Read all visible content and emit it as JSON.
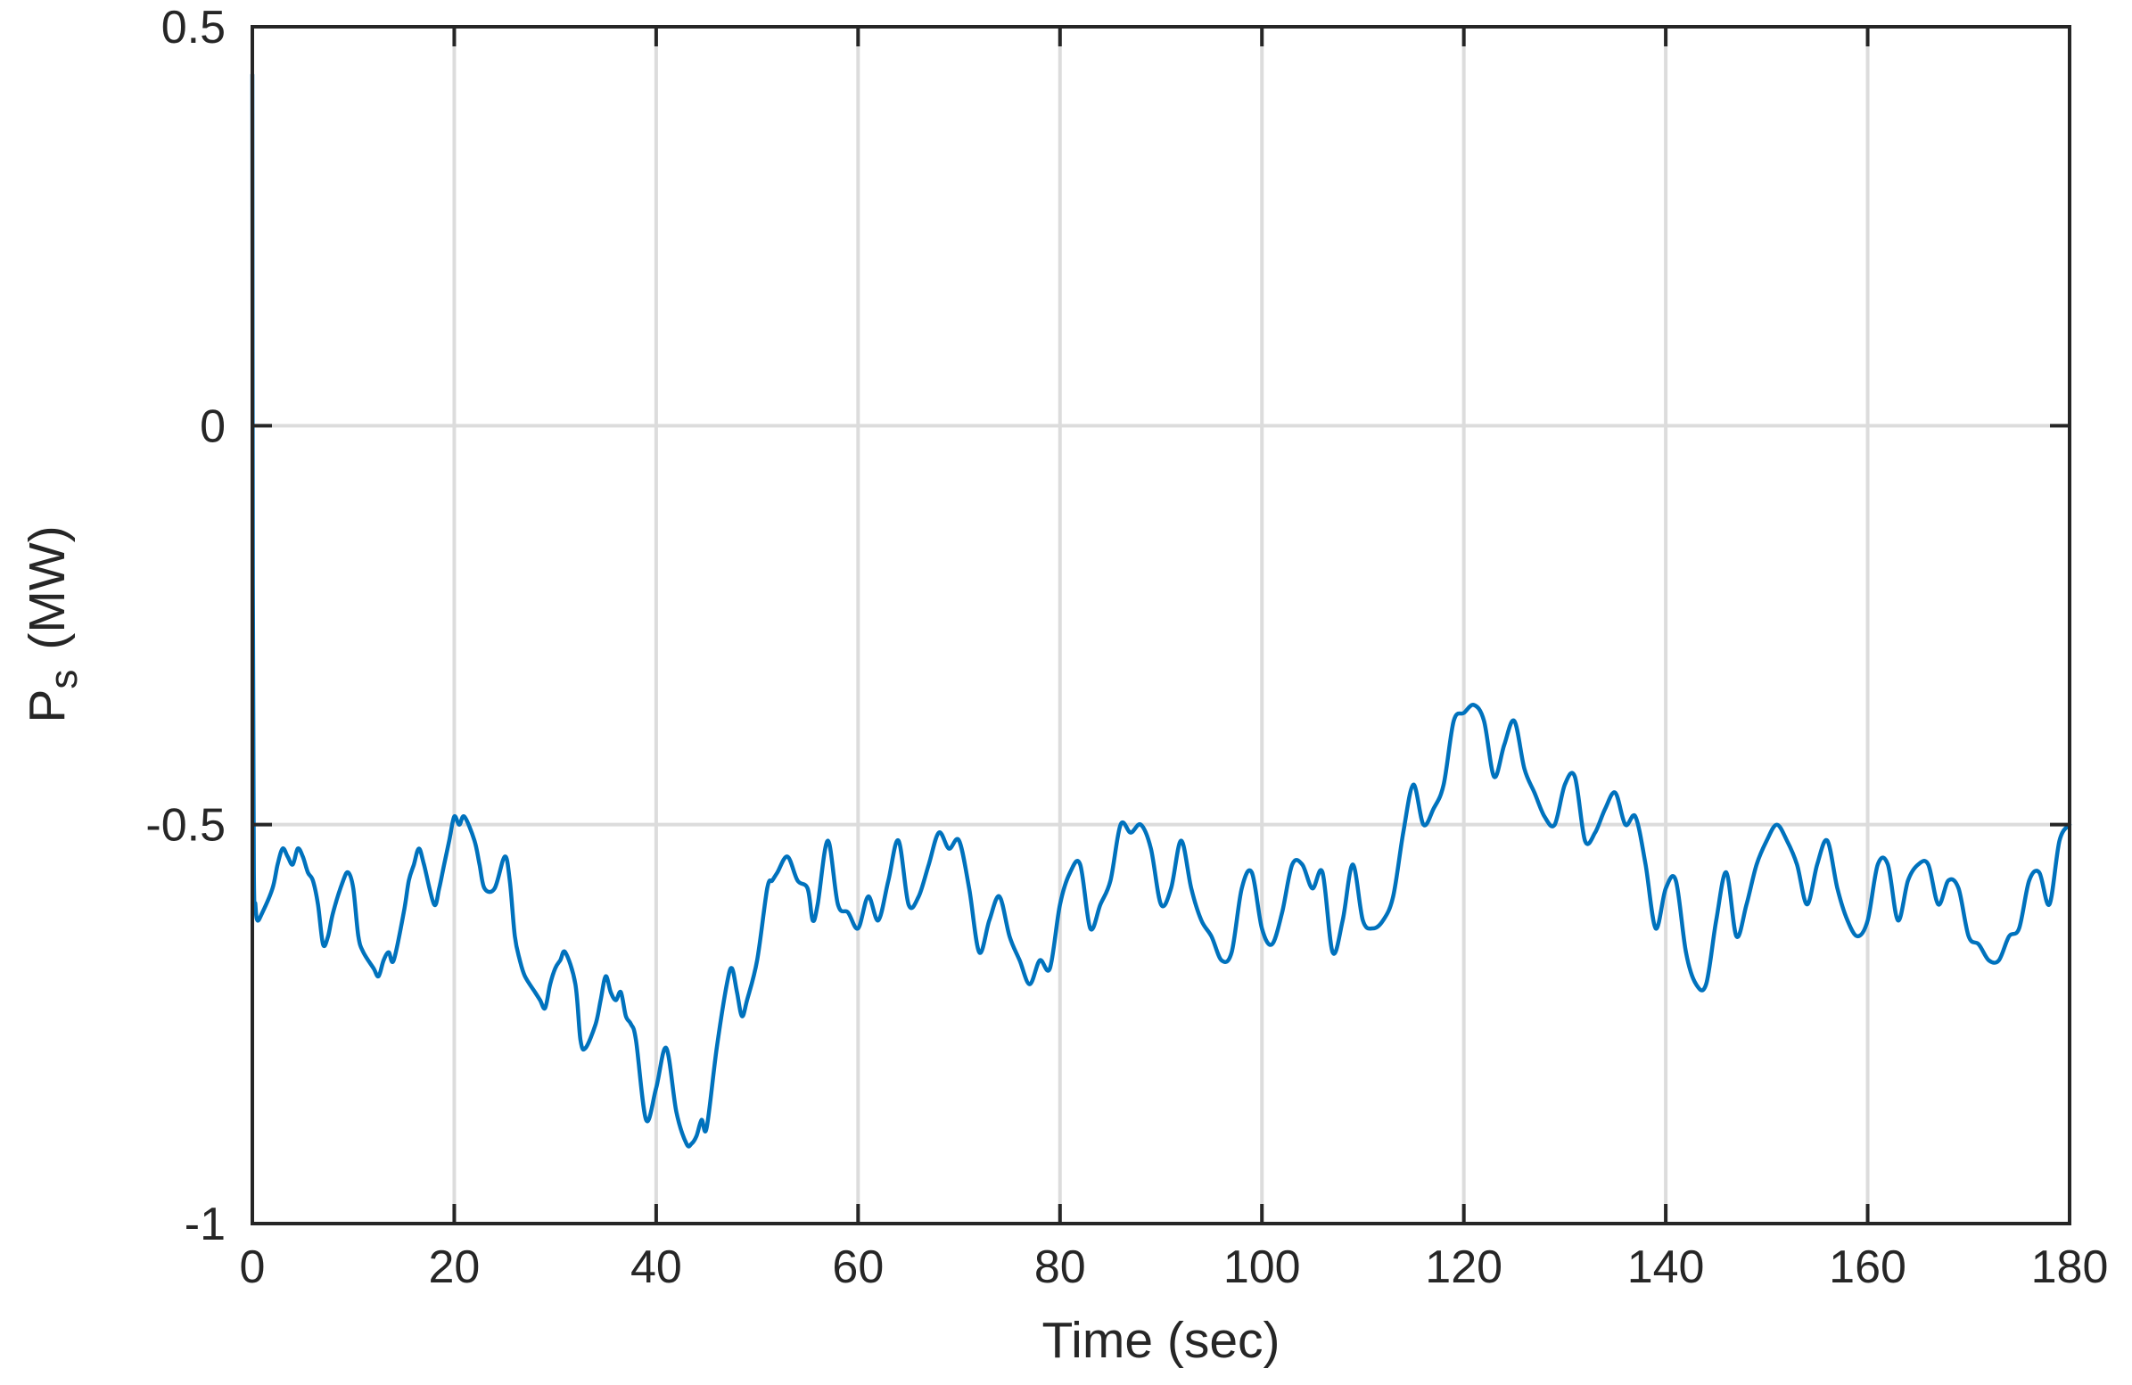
{
  "chart_data": {
    "type": "line",
    "title": "",
    "xlabel": "Time (sec)",
    "ylabel": {
      "main": "P",
      "subscript": "s",
      "unit": "(MW)"
    },
    "xlim": [
      0,
      180
    ],
    "ylim": [
      -1,
      0.5
    ],
    "xticks": [
      0,
      20,
      40,
      60,
      80,
      100,
      120,
      140,
      160,
      180
    ],
    "xtick_labels": [
      "0",
      "20",
      "40",
      "60",
      "80",
      "100",
      "120",
      "140",
      "160",
      "180"
    ],
    "yticks": [
      -1,
      -0.5,
      0,
      0.5
    ],
    "ytick_labels": [
      "-1",
      "-0.5",
      "0",
      "0.5"
    ],
    "grid": true,
    "legend": "none",
    "line_color": "#0072bd",
    "series": [
      {
        "x": [
          0,
          0.05,
          0.15,
          0.3,
          0.5,
          1,
          2,
          2.5,
          3,
          3.5,
          4,
          4.5,
          5,
          5.5,
          6,
          6.5,
          7,
          7.5,
          8,
          9,
          9.5,
          10,
          10.5,
          11,
          12,
          12.5,
          13,
          13.5,
          14,
          15,
          15.5,
          16,
          16.5,
          17,
          18,
          18.5,
          19,
          19.5,
          20,
          20.5,
          21,
          22,
          22.5,
          23,
          24,
          25,
          25.5,
          26,
          26.5,
          27,
          28,
          28.5,
          29,
          29.5,
          30,
          30.5,
          31,
          32,
          32.5,
          33,
          34,
          34.5,
          35,
          35.5,
          36,
          36.5,
          37,
          37.5,
          38,
          39,
          40,
          41,
          42,
          43,
          43.5,
          44,
          44.5,
          45,
          46,
          47,
          47.5,
          48,
          48.5,
          49,
          50,
          51,
          51.5,
          52,
          53,
          54,
          55,
          55.5,
          56,
          57,
          58,
          59,
          60,
          61,
          62,
          63,
          64,
          65,
          66,
          67,
          68,
          69,
          70,
          71,
          72,
          73,
          74,
          75,
          76,
          77,
          78,
          79,
          80,
          81,
          82,
          83,
          84,
          85,
          86,
          87,
          88,
          89,
          90,
          91,
          92,
          93,
          94,
          95,
          96,
          97,
          98,
          99,
          100,
          101,
          102,
          103,
          104,
          105,
          106,
          107,
          108,
          109,
          110,
          111,
          112,
          113,
          114,
          115,
          116,
          117,
          118,
          119,
          120,
          121,
          122,
          123,
          124,
          125,
          126,
          127,
          128,
          129,
          130,
          131,
          132,
          133,
          134,
          135,
          136,
          137,
          138,
          139,
          140,
          141,
          142,
          143,
          144,
          145,
          146,
          147,
          148,
          149,
          150,
          151,
          152,
          153,
          154,
          155,
          156,
          157,
          158,
          159,
          160,
          161,
          162,
          163,
          164,
          165,
          166,
          167,
          168,
          169,
          170,
          171,
          172,
          173,
          174,
          175,
          176,
          177,
          178,
          179,
          180
        ],
        "y": [
          0.44,
          -0.2,
          -0.56,
          -0.6,
          -0.62,
          -0.61,
          -0.58,
          -0.55,
          -0.53,
          -0.54,
          -0.55,
          -0.53,
          -0.54,
          -0.56,
          -0.57,
          -0.6,
          -0.65,
          -0.64,
          -0.61,
          -0.57,
          -0.56,
          -0.58,
          -0.64,
          -0.66,
          -0.68,
          -0.69,
          -0.67,
          -0.66,
          -0.67,
          -0.61,
          -0.57,
          -0.55,
          -0.53,
          -0.55,
          -0.6,
          -0.58,
          -0.55,
          -0.52,
          -0.49,
          -0.5,
          -0.49,
          -0.52,
          -0.55,
          -0.58,
          -0.58,
          -0.54,
          -0.57,
          -0.64,
          -0.67,
          -0.69,
          -0.71,
          -0.72,
          -0.73,
          -0.7,
          -0.68,
          -0.67,
          -0.66,
          -0.7,
          -0.77,
          -0.78,
          -0.75,
          -0.72,
          -0.69,
          -0.71,
          -0.72,
          -0.71,
          -0.74,
          -0.75,
          -0.77,
          -0.87,
          -0.83,
          -0.78,
          -0.86,
          -0.9,
          -0.9,
          -0.89,
          -0.87,
          -0.88,
          -0.78,
          -0.7,
          -0.68,
          -0.71,
          -0.74,
          -0.72,
          -0.67,
          -0.58,
          -0.57,
          -0.56,
          -0.54,
          -0.57,
          -0.58,
          -0.62,
          -0.6,
          -0.52,
          -0.6,
          -0.61,
          -0.63,
          -0.59,
          -0.62,
          -0.57,
          -0.52,
          -0.6,
          -0.59,
          -0.55,
          -0.51,
          -0.53,
          -0.52,
          -0.58,
          -0.66,
          -0.62,
          -0.59,
          -0.64,
          -0.67,
          -0.7,
          -0.67,
          -0.68,
          -0.6,
          -0.56,
          -0.55,
          -0.63,
          -0.6,
          -0.57,
          -0.5,
          -0.51,
          -0.5,
          -0.53,
          -0.6,
          -0.58,
          -0.52,
          -0.58,
          -0.62,
          -0.64,
          -0.67,
          -0.66,
          -0.58,
          -0.56,
          -0.63,
          -0.65,
          -0.61,
          -0.55,
          -0.55,
          -0.58,
          -0.56,
          -0.66,
          -0.62,
          -0.55,
          -0.62,
          -0.63,
          -0.62,
          -0.59,
          -0.51,
          -0.45,
          -0.5,
          -0.48,
          -0.45,
          -0.37,
          -0.36,
          -0.35,
          -0.37,
          -0.44,
          -0.4,
          -0.37,
          -0.43,
          -0.46,
          -0.49,
          -0.5,
          -0.45,
          -0.44,
          -0.52,
          -0.51,
          -0.48,
          -0.46,
          -0.5,
          -0.49,
          -0.55,
          -0.63,
          -0.58,
          -0.57,
          -0.66,
          -0.7,
          -0.7,
          -0.62,
          -0.56,
          -0.64,
          -0.6,
          -0.55,
          -0.52,
          -0.5,
          -0.52,
          -0.55,
          -0.6,
          -0.55,
          -0.52,
          -0.58,
          -0.62,
          -0.64,
          -0.62,
          -0.55,
          -0.55,
          -0.62,
          -0.57,
          -0.55,
          -0.55,
          -0.6,
          -0.57,
          -0.58,
          -0.64,
          -0.65,
          -0.67,
          -0.67,
          -0.64,
          -0.63,
          -0.57,
          -0.56,
          -0.6,
          -0.52,
          -0.5
        ]
      }
    ]
  }
}
